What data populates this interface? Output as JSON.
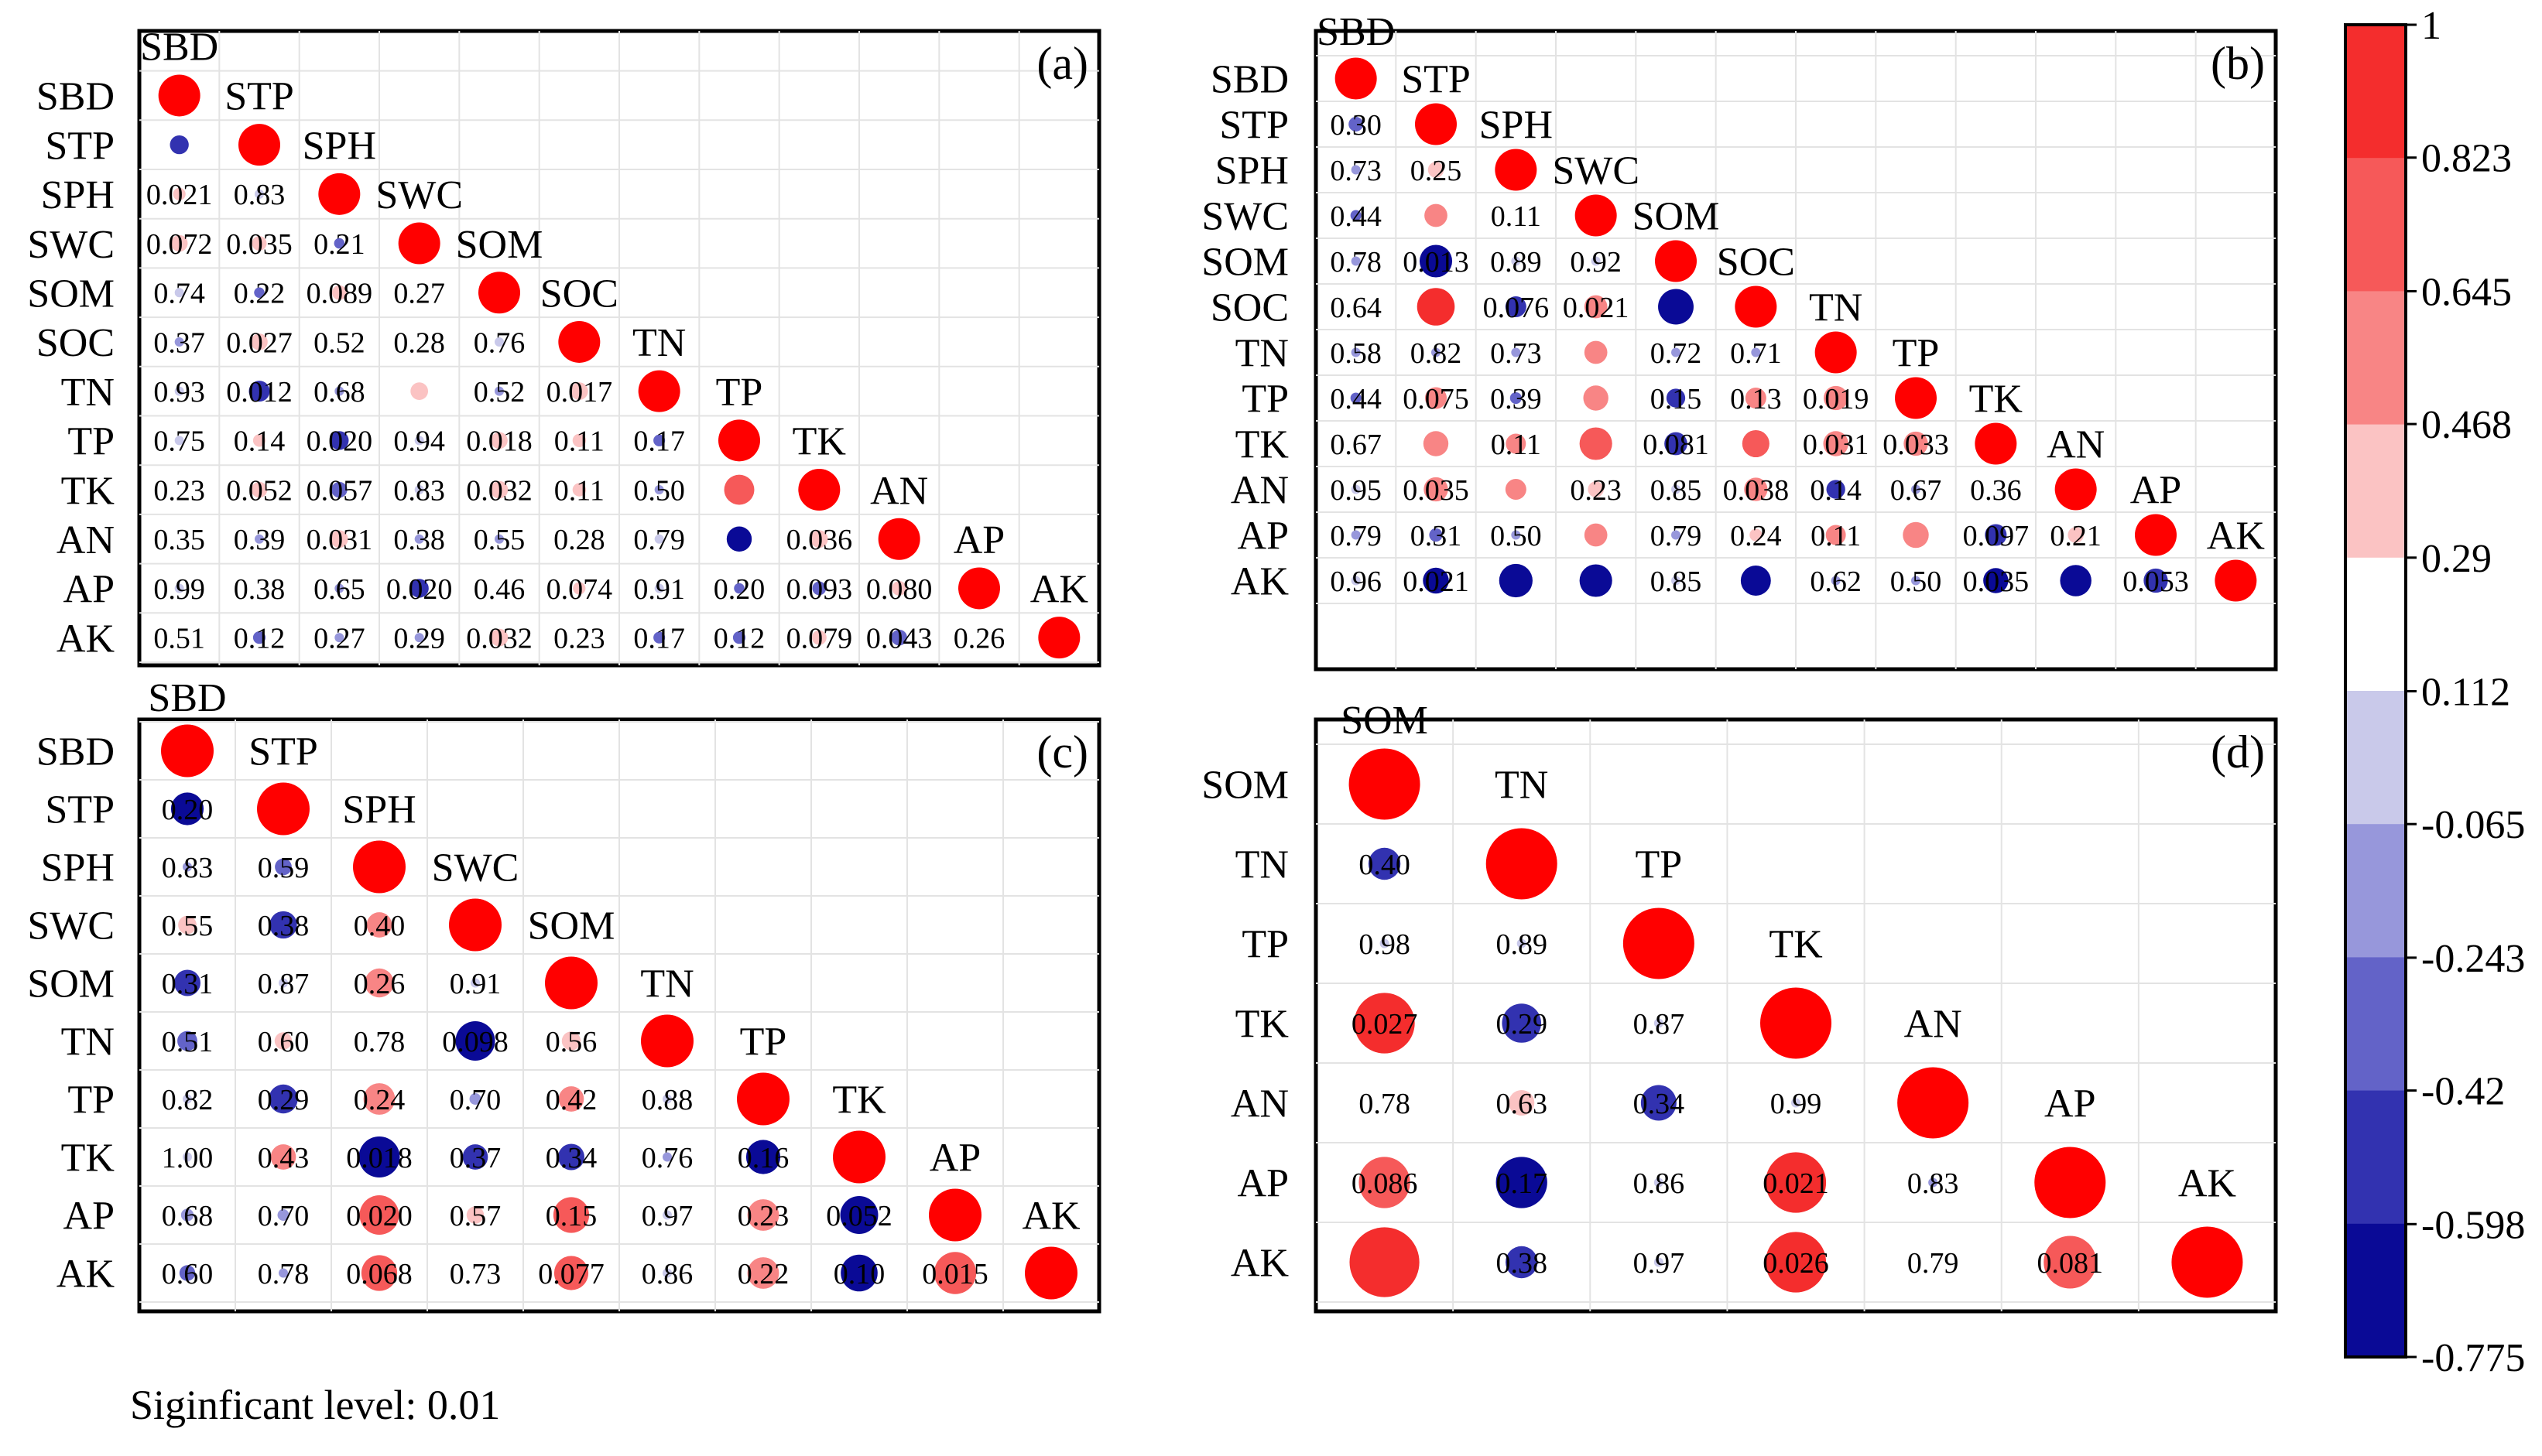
{
  "chart_data": [
    {
      "id": "a",
      "type": "heatmap",
      "panel_label": "(a)",
      "variables": [
        "SBD",
        "STP",
        "SPH",
        "SWC",
        "SOM",
        "SOC",
        "TN",
        "TP",
        "TK",
        "AN",
        "AP",
        "AK"
      ],
      "pvalue_labels": [
        [],
        [
          ""
        ],
        [
          "0.021",
          "0.83"
        ],
        [
          "0.072",
          "0.035",
          "0.21"
        ],
        [
          "0.74",
          "0.22",
          "0.089",
          "0.27"
        ],
        [
          "0.37",
          "0.027",
          "0.52",
          "0.28",
          "0.76"
        ],
        [
          "0.93",
          "0.012",
          "0.68",
          "",
          "0.52",
          "0.017"
        ],
        [
          "0.75",
          "0.14",
          "0.020",
          "0.94",
          "0.018",
          "0.11",
          "0.17"
        ],
        [
          "0.23",
          "0.052",
          "0.057",
          "0.83",
          "0.032",
          "0.11",
          "0.50",
          ""
        ],
        [
          "0.35",
          "0.39",
          "0.031",
          "0.38",
          "0.55",
          "0.28",
          "0.79",
          "",
          "0.036"
        ],
        [
          "0.99",
          "0.38",
          "0.65",
          "0.020",
          "0.46",
          "0.074",
          "0.91",
          "0.20",
          "0.093",
          "0.080"
        ],
        [
          "0.51",
          "0.12",
          "0.27",
          "0.29",
          "0.032",
          "0.23",
          "0.17",
          "0.12",
          "0.079",
          "0.043",
          "0.26"
        ]
      ],
      "correlations": [
        [],
        [
          -0.45
        ],
        [
          0.3,
          -0.03
        ],
        [
          0.4,
          0.35,
          -0.25
        ],
        [
          0.06,
          -0.25,
          0.35,
          0.22
        ],
        [
          -0.18,
          0.4,
          0.13,
          0.22,
          0.06
        ],
        [
          0.02,
          -0.5,
          -0.08,
          0.42,
          -0.13,
          0.42
        ],
        [
          -0.06,
          0.3,
          -0.45,
          0.01,
          0.4,
          0.32,
          -0.28
        ],
        [
          0.24,
          0.38,
          -0.38,
          -0.04,
          0.42,
          0.32,
          -0.14,
          0.72
        ],
        [
          0.19,
          -0.18,
          0.42,
          -0.18,
          -0.1,
          0.22,
          0.05,
          -0.6,
          0.42
        ],
        [
          0.0,
          0.18,
          -0.09,
          -0.45,
          0.14,
          0.3,
          -0.02,
          -0.25,
          -0.33,
          0.35
        ],
        [
          0.13,
          -0.3,
          -0.22,
          -0.21,
          0.42,
          0.24,
          -0.28,
          -0.3,
          0.35,
          -0.38,
          0.22
        ]
      ]
    },
    {
      "id": "b",
      "type": "heatmap",
      "panel_label": "(b)",
      "variables": [
        "SBD",
        "STP",
        "SPH",
        "SWC",
        "SOM",
        "SOC",
        "TN",
        "TP",
        "TK",
        "AN",
        "AP",
        "AK"
      ],
      "pvalue_labels": [
        [],
        [
          "0.30"
        ],
        [
          "0.73",
          "0.25"
        ],
        [
          "0.44",
          "",
          "0.11"
        ],
        [
          "0.78",
          "0.013",
          "0.89",
          "0.92"
        ],
        [
          "0.64",
          "",
          "0.076",
          "0.021",
          ""
        ],
        [
          "0.58",
          "0.82",
          "0.73",
          "",
          "0.72",
          "0.71"
        ],
        [
          "0.44",
          "0.075",
          "0.39",
          "",
          "0.15",
          "0.13",
          "0.019"
        ],
        [
          "0.67",
          "",
          "0.11",
          "",
          "0.081",
          "",
          "0.031",
          "0.033"
        ],
        [
          "0.95",
          "0.035",
          "",
          "0.23",
          "0.85",
          "0.038",
          "0.14",
          "0.67",
          "0.36"
        ],
        [
          "0.79",
          "0.31",
          "0.50",
          "",
          "0.79",
          "0.24",
          "0.11",
          "",
          "0.097",
          "0.21"
        ],
        [
          "0.96",
          "0.021",
          "",
          "",
          "0.85",
          "",
          "0.62",
          "0.50",
          "0.035",
          "",
          "0.053"
        ]
      ],
      "correlations": [
        [],
        [
          -0.35
        ],
        [
          -0.12,
          0.38
        ],
        [
          -0.26,
          0.55,
          0.25
        ],
        [
          -0.1,
          -0.78,
          0.05,
          0.04
        ],
        [
          0.15,
          0.9,
          -0.5,
          0.55,
          -0.85
        ],
        [
          -0.2,
          -0.08,
          -0.12,
          0.55,
          -0.13,
          -0.14
        ],
        [
          -0.26,
          0.52,
          -0.28,
          0.6,
          -0.45,
          0.5,
          0.58
        ],
        [
          0.16,
          0.6,
          0.48,
          0.78,
          -0.55,
          0.65,
          0.6,
          0.58
        ],
        [
          -0.02,
          0.58,
          0.5,
          0.38,
          -0.06,
          0.56,
          -0.45,
          -0.16,
          0.28
        ],
        [
          -0.09,
          -0.32,
          -0.22,
          0.55,
          -0.09,
          0.3,
          0.48,
          0.62,
          -0.52,
          0.38
        ],
        [
          -0.02,
          -0.62,
          -0.8,
          -0.78,
          -0.06,
          -0.72,
          -0.16,
          -0.22,
          -0.6,
          -0.75,
          -0.58
        ]
      ]
    },
    {
      "id": "c",
      "type": "heatmap",
      "panel_label": "(c)",
      "variables": [
        "SBD",
        "STP",
        "SPH",
        "SWC",
        "SOM",
        "TN",
        "TP",
        "TK",
        "AP",
        "AK"
      ],
      "pvalue_labels": [
        [],
        [
          "0.20"
        ],
        [
          "0.83",
          "0.59"
        ],
        [
          "0.55",
          "0.38",
          "0.40"
        ],
        [
          "0.31",
          "0.87",
          "0.26",
          "0.91"
        ],
        [
          "0.51",
          "0.60",
          "0.78",
          "0.098",
          "0.56"
        ],
        [
          "0.82",
          "0.29",
          "0.24",
          "0.70",
          "0.42",
          "0.88"
        ],
        [
          "1.00",
          "0.43",
          "0.018",
          "0.37",
          "0.34",
          "0.76",
          "0.16"
        ],
        [
          "0.68",
          "0.70",
          "0.020",
          "0.57",
          "0.15",
          "0.97",
          "0.23",
          "0.052"
        ],
        [
          "0.60",
          "0.78",
          "0.068",
          "0.73",
          "0.077",
          "0.86",
          "0.22",
          "0.10",
          "0.015"
        ]
      ],
      "correlations": [
        [],
        [
          -0.62
        ],
        [
          -0.1,
          -0.32
        ],
        [
          0.35,
          -0.52,
          0.48
        ],
        [
          -0.5,
          0.08,
          0.55,
          0.05
        ],
        [
          -0.38,
          0.33,
          0.15,
          -0.75,
          0.36
        ],
        [
          0.1,
          -0.55,
          0.6,
          -0.22,
          0.48,
          0.07
        ],
        [
          0.0,
          0.48,
          -0.78,
          -0.48,
          -0.5,
          -0.16,
          -0.65
        ],
        [
          -0.24,
          -0.22,
          0.75,
          0.33,
          0.68,
          0.02,
          0.6,
          -0.72
        ],
        [
          -0.3,
          -0.16,
          0.68,
          0.2,
          0.65,
          0.09,
          0.6,
          -0.7,
          0.8
        ]
      ]
    },
    {
      "id": "d",
      "type": "heatmap",
      "panel_label": "(d)",
      "variables": [
        "SOM",
        "TN",
        "TP",
        "TK",
        "AN",
        "AP",
        "AK"
      ],
      "pvalue_labels": [
        [],
        [
          "0.40"
        ],
        [
          "0.98",
          "0.89"
        ],
        [
          "0.027",
          "0.29",
          "0.87"
        ],
        [
          "0.78",
          "0.63",
          "0.34",
          "0.99"
        ],
        [
          "0.086",
          "0.17",
          "0.86",
          "0.021",
          "0.83"
        ],
        [
          "",
          "0.38",
          "0.97",
          "0.026",
          "0.79",
          "0.081"
        ]
      ],
      "correlations": [
        [],
        [
          -0.45
        ],
        [
          0.01,
          -0.06
        ],
        [
          0.85,
          -0.55,
          0.08
        ],
        [
          0.15,
          0.36,
          -0.5,
          0.0
        ],
        [
          0.72,
          -0.72,
          0.08,
          0.85,
          -0.1
        ],
        [
          0.98,
          -0.45,
          0.01,
          0.85,
          0.13,
          0.74
        ]
      ]
    }
  ],
  "colorbar": {
    "type": "colorbar",
    "ticks": [
      "1",
      "0.823",
      "0.645",
      "0.468",
      "0.29",
      "0.112",
      "-0.065",
      "-0.243",
      "-0.42",
      "-0.598",
      "-0.775"
    ],
    "range": [
      -0.775,
      1
    ],
    "bins": [
      {
        "from": 0.823,
        "to": 1,
        "color": "#f42d2d"
      },
      {
        "from": 0.645,
        "to": 0.823,
        "color": "#f65959"
      },
      {
        "from": 0.468,
        "to": 0.645,
        "color": "#f88585"
      },
      {
        "from": 0.29,
        "to": 0.468,
        "color": "#fbc3c3"
      },
      {
        "from": 0.112,
        "to": 0.29,
        "color": "#ffffff"
      },
      {
        "from": -0.065,
        "to": 0.112,
        "color": "#c9c9ea"
      },
      {
        "from": -0.243,
        "to": -0.065,
        "color": "#9797db"
      },
      {
        "from": -0.42,
        "to": -0.243,
        "color": "#6363c8"
      },
      {
        "from": -0.598,
        "to": -0.42,
        "color": "#3232b0"
      },
      {
        "from": -0.775,
        "to": -0.598,
        "color": "#0a0a96"
      }
    ]
  },
  "diagonal_color": "#ff0000",
  "footnote": "Siginficant level: 0.01"
}
